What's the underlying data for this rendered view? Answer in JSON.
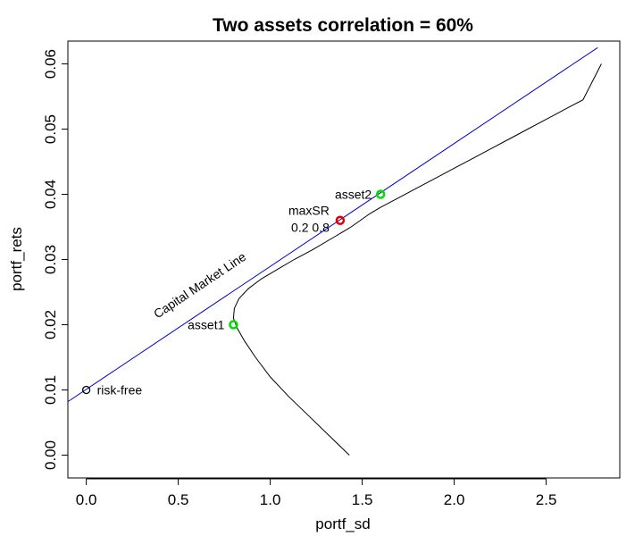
{
  "chart_data": {
    "type": "scatter",
    "title": "Two assets correlation = 60%",
    "xlabel": "portf_sd",
    "ylabel": "portf_rets",
    "xlim": [
      -0.1,
      2.9
    ],
    "ylim": [
      -0.0035,
      0.0635
    ],
    "x_ticks": [
      0.0,
      0.5,
      1.0,
      1.5,
      2.0,
      2.5
    ],
    "x_tick_labels": [
      "0.0",
      "0.5",
      "1.0",
      "1.5",
      "2.0",
      "2.5"
    ],
    "y_ticks": [
      0.0,
      0.01,
      0.02,
      0.03,
      0.04,
      0.05,
      0.06
    ],
    "y_tick_labels": [
      "0.00",
      "0.01",
      "0.02",
      "0.03",
      "0.04",
      "0.05",
      "0.06"
    ],
    "grid": false,
    "frontier": {
      "x": [
        1.43,
        1.32,
        1.21,
        1.1,
        1.0,
        0.92,
        0.86,
        0.82,
        0.8,
        0.805,
        0.83,
        0.88,
        0.95,
        1.04,
        1.13,
        1.23,
        1.35,
        1.44,
        1.54,
        1.6,
        1.7,
        1.8,
        1.9,
        2.0,
        2.1,
        2.2,
        2.3,
        2.4,
        2.5,
        2.6,
        2.7,
        2.8
      ],
      "y": [
        0.0,
        0.003,
        0.006,
        0.009,
        0.012,
        0.015,
        0.0175,
        0.0195,
        0.021,
        0.0225,
        0.024,
        0.0255,
        0.027,
        0.0285,
        0.03,
        0.0315,
        0.0335,
        0.035,
        0.037,
        0.038,
        0.0395,
        0.041,
        0.0425,
        0.044,
        0.0455,
        0.047,
        0.0485,
        0.05,
        0.0515,
        0.053,
        0.0545,
        0.06
      ]
    },
    "capital_market_line": {
      "label": "Capital Market Line",
      "x": [
        -0.1,
        2.78
      ],
      "y": [
        0.0082,
        0.0625
      ],
      "color": "#0000cc"
    },
    "points": [
      {
        "label": "risk-free",
        "x": 0.0,
        "y": 0.01,
        "color": "#000000"
      },
      {
        "label": "asset1",
        "x": 0.8,
        "y": 0.02,
        "color": "#00dd00"
      },
      {
        "label": "asset2",
        "x": 1.6,
        "y": 0.04,
        "color": "#00dd00"
      },
      {
        "label": "maxSR",
        "sublabel": "0.2 0.8",
        "x": 1.38,
        "y": 0.036,
        "color": "#dd0000"
      }
    ]
  }
}
